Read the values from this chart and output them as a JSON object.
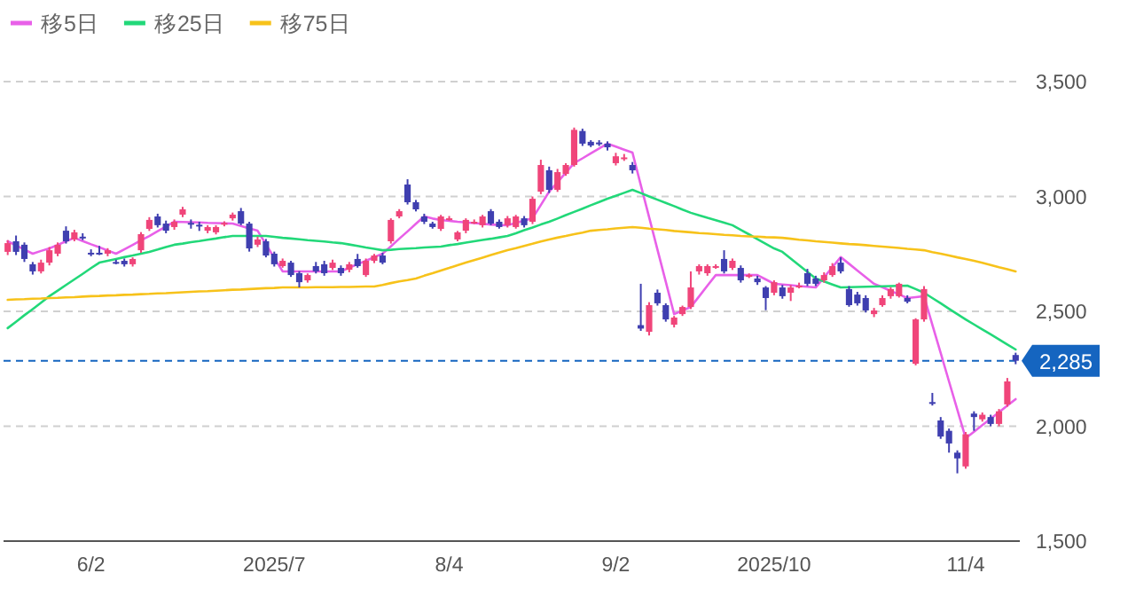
{
  "chart_data": {
    "type": "candlestick",
    "categories": [
      null,
      null,
      null,
      null,
      null,
      null,
      null,
      null,
      null,
      null,
      "6/2",
      null,
      null,
      null,
      null,
      null,
      null,
      null,
      null,
      null,
      null,
      null,
      null,
      null,
      null,
      null,
      null,
      null,
      null,
      null,
      null,
      null,
      "2025/7",
      null,
      null,
      null,
      null,
      null,
      null,
      null,
      null,
      null,
      null,
      null,
      null,
      null,
      null,
      null,
      null,
      null,
      null,
      null,
      null,
      "8/4",
      null,
      null,
      null,
      null,
      null,
      null,
      null,
      null,
      null,
      null,
      null,
      null,
      null,
      null,
      null,
      null,
      null,
      null,
      null,
      "9/2",
      null,
      null,
      null,
      null,
      null,
      null,
      null,
      null,
      null,
      null,
      null,
      null,
      null,
      null,
      null,
      null,
      null,
      null,
      "2025/10",
      null,
      null,
      null,
      null,
      null,
      null,
      null,
      null,
      null,
      null,
      null,
      null,
      null,
      null,
      null,
      null,
      null,
      null,
      null,
      null,
      null,
      null,
      "11/4",
      null,
      null,
      null,
      null,
      null,
      null
    ],
    "ohlc": [
      [
        2759,
        2810,
        2745,
        2797
      ],
      [
        2805,
        2830,
        2745,
        2759
      ],
      [
        2790,
        2800,
        2715,
        2728
      ],
      [
        2705,
        2715,
        2660,
        2674
      ],
      [
        2674,
        2725,
        2665,
        2712
      ],
      [
        2712,
        2780,
        2700,
        2766
      ],
      [
        2751,
        2800,
        2740,
        2790
      ],
      [
        2851,
        2870,
        2795,
        2805
      ],
      [
        2813,
        2855,
        2805,
        2844
      ],
      [
        2825,
        2840,
        2810,
        2818
      ],
      [
        2755,
        2770,
        2740,
        2750
      ],
      [
        2755,
        2785,
        2745,
        2748
      ],
      [
        2751,
        2775,
        2740,
        2766
      ],
      [
        2715,
        2725,
        2705,
        2710
      ],
      [
        2720,
        2730,
        2695,
        2705
      ],
      [
        2705,
        2735,
        2695,
        2728
      ],
      [
        2766,
        2845,
        2755,
        2836
      ],
      [
        2859,
        2910,
        2850,
        2898
      ],
      [
        2913,
        2925,
        2865,
        2875
      ],
      [
        2882,
        2895,
        2840,
        2851
      ],
      [
        2867,
        2900,
        2855,
        2890
      ],
      [
        2921,
        2955,
        2910,
        2944
      ],
      [
        2885,
        2900,
        2860,
        2880
      ],
      [
        2877,
        2890,
        2850,
        2874
      ],
      [
        2851,
        2875,
        2840,
        2867
      ],
      [
        2844,
        2875,
        2835,
        2867
      ],
      [
        2878,
        2892,
        2870,
        2885
      ],
      [
        2905,
        2930,
        2895,
        2921
      ],
      [
        2936,
        2950,
        2875,
        2882
      ],
      [
        2882,
        2890,
        2760,
        2774
      ],
      [
        2790,
        2825,
        2780,
        2813
      ],
      [
        2805,
        2815,
        2735,
        2743
      ],
      [
        2751,
        2760,
        2695,
        2705
      ],
      [
        2697,
        2730,
        2690,
        2720
      ],
      [
        2712,
        2720,
        2650,
        2658
      ],
      [
        2666,
        2675,
        2604,
        2627
      ],
      [
        2635,
        2665,
        2625,
        2658
      ],
      [
        2697,
        2715,
        2665,
        2674
      ],
      [
        2705,
        2720,
        2655,
        2666
      ],
      [
        2689,
        2725,
        2680,
        2712
      ],
      [
        2689,
        2700,
        2655,
        2666
      ],
      [
        2681,
        2715,
        2670,
        2705
      ],
      [
        2728,
        2750,
        2690,
        2697
      ],
      [
        2658,
        2730,
        2650,
        2720
      ],
      [
        2720,
        2750,
        2710,
        2743
      ],
      [
        2743,
        2755,
        2705,
        2712
      ],
      [
        2805,
        2905,
        2795,
        2898
      ],
      [
        2913,
        2945,
        2905,
        2936
      ],
      [
        3052,
        3075,
        2965,
        2975
      ],
      [
        2975,
        2985,
        2935,
        2944
      ],
      [
        2913,
        2925,
        2880,
        2890
      ],
      [
        2882,
        2890,
        2860,
        2867
      ],
      [
        2859,
        2920,
        2850,
        2913
      ],
      [
        2900,
        2915,
        2895,
        2905
      ],
      [
        2813,
        2850,
        2805,
        2844
      ],
      [
        2851,
        2905,
        2840,
        2898
      ],
      [
        2885,
        2900,
        2880,
        2890
      ],
      [
        2875,
        2920,
        2865,
        2913
      ],
      [
        2936,
        2945,
        2875,
        2882
      ],
      [
        2890,
        2900,
        2860,
        2867
      ],
      [
        2875,
        2915,
        2865,
        2905
      ],
      [
        2867,
        2920,
        2860,
        2913
      ],
      [
        2905,
        2915,
        2865,
        2875
      ],
      [
        2890,
        3000,
        2880,
        2990
      ],
      [
        3021,
        3160,
        3010,
        3137
      ],
      [
        3114,
        3130,
        3015,
        3029
      ],
      [
        3029,
        3120,
        3020,
        3106
      ],
      [
        3098,
        3145,
        3090,
        3137
      ],
      [
        3137,
        3300,
        3130,
        3290
      ],
      [
        3285,
        3295,
        3220,
        3230
      ],
      [
        3238,
        3245,
        3215,
        3222
      ],
      [
        3235,
        3245,
        3220,
        3228
      ],
      [
        3230,
        3240,
        3200,
        3214
      ],
      [
        3145,
        3190,
        3135,
        3175
      ],
      [
        3165,
        3185,
        3155,
        3170
      ],
      [
        3137,
        3150,
        3100,
        3114
      ],
      [
        2440,
        2620,
        2415,
        2425
      ],
      [
        2411,
        2540,
        2395,
        2527
      ],
      [
        2581,
        2595,
        2525,
        2535
      ],
      [
        2527,
        2535,
        2455,
        2465
      ],
      [
        2442,
        2480,
        2430,
        2473
      ],
      [
        2488,
        2525,
        2480,
        2519
      ],
      [
        2519,
        2674,
        2510,
        2604
      ],
      [
        2674,
        2705,
        2660,
        2697
      ],
      [
        2666,
        2705,
        2655,
        2697
      ],
      [
        2690,
        2705,
        2685,
        2697
      ],
      [
        2728,
        2766,
        2665,
        2674
      ],
      [
        2689,
        2730,
        2680,
        2720
      ],
      [
        2689,
        2700,
        2625,
        2635
      ],
      [
        2650,
        2665,
        2645,
        2658
      ],
      [
        2643,
        2655,
        2615,
        2627
      ],
      [
        2604,
        2610,
        2505,
        2558
      ],
      [
        2581,
        2635,
        2570,
        2627
      ],
      [
        2604,
        2615,
        2555,
        2566
      ],
      [
        2581,
        2615,
        2545,
        2604
      ],
      [
        2604,
        2625,
        2600,
        2612
      ],
      [
        2666,
        2685,
        2610,
        2620
      ],
      [
        2643,
        2655,
        2610,
        2620
      ],
      [
        2635,
        2670,
        2625,
        2658
      ],
      [
        2658,
        2710,
        2650,
        2697
      ],
      [
        2712,
        2735,
        2665,
        2674
      ],
      [
        2597,
        2610,
        2520,
        2527
      ],
      [
        2573,
        2585,
        2525,
        2535
      ],
      [
        2558,
        2570,
        2495,
        2504
      ],
      [
        2488,
        2515,
        2475,
        2504
      ],
      [
        2527,
        2570,
        2520,
        2558
      ],
      [
        2566,
        2605,
        2555,
        2597
      ],
      [
        2566,
        2625,
        2560,
        2620
      ],
      [
        2558,
        2570,
        2535,
        2542
      ],
      [
        2272,
        2470,
        2265,
        2465
      ],
      [
        2465,
        2610,
        2455,
        2597
      ],
      [
        2105,
        2145,
        2090,
        2098
      ],
      [
        2025,
        2040,
        1945,
        1955
      ],
      [
        1980,
        1990,
        1885,
        1925
      ],
      [
        1885,
        1895,
        1795,
        1860
      ],
      [
        1825,
        1975,
        1815,
        1965
      ],
      [
        2055,
        2065,
        1980,
        2040
      ],
      [
        2030,
        2060,
        2020,
        2050
      ],
      [
        2040,
        2050,
        2000,
        2010
      ],
      [
        2010,
        2075,
        2000,
        2065
      ],
      [
        2095,
        2210,
        2085,
        2195
      ],
      [
        2310,
        2320,
        2270,
        2285
      ]
    ],
    "colors": [
      "#f0457a",
      "#3f3fb0",
      "#3f3fb0",
      "#3f3fb0",
      "#f0457a",
      "#f0457a",
      "#f0457a",
      "#3f3fb0",
      "#f0457a",
      "#3f3fb0",
      "#3f3fb0",
      "#3f3fb0",
      "#f0457a",
      "#3f3fb0",
      "#3f3fb0",
      "#f0457a",
      "#f0457a",
      "#f0457a",
      "#3f3fb0",
      "#3f3fb0",
      "#f0457a",
      "#f0457a",
      "#3f3fb0",
      "#3f3fb0",
      "#f0457a",
      "#f0457a",
      "#f0457a",
      "#f0457a",
      "#3f3fb0",
      "#3f3fb0",
      "#f0457a",
      "#3f3fb0",
      "#3f3fb0",
      "#f0457a",
      "#3f3fb0",
      "#3f3fb0",
      "#f0457a",
      "#3f3fb0",
      "#3f3fb0",
      "#f0457a",
      "#3f3fb0",
      "#f0457a",
      "#3f3fb0",
      "#f0457a",
      "#f0457a",
      "#3f3fb0",
      "#f0457a",
      "#f0457a",
      "#3f3fb0",
      "#3f3fb0",
      "#3f3fb0",
      "#3f3fb0",
      "#f0457a",
      "#f0457a",
      "#f0457a",
      "#f0457a",
      "#f0457a",
      "#f0457a",
      "#3f3fb0",
      "#3f3fb0",
      "#f0457a",
      "#f0457a",
      "#3f3fb0",
      "#f0457a",
      "#f0457a",
      "#3f3fb0",
      "#f0457a",
      "#f0457a",
      "#f0457a",
      "#3f3fb0",
      "#3f3fb0",
      "#3f3fb0",
      "#3f3fb0",
      "#f0457a",
      "#f0457a",
      "#3f3fb0",
      "#3f3fb0",
      "#f0457a",
      "#3f3fb0",
      "#3f3fb0",
      "#f0457a",
      "#f0457a",
      "#f0457a",
      "#f0457a",
      "#f0457a",
      "#f0457a",
      "#3f3fb0",
      "#f0457a",
      "#3f3fb0",
      "#f0457a",
      "#3f3fb0",
      "#3f3fb0",
      "#f0457a",
      "#3f3fb0",
      "#f0457a",
      "#f0457a",
      "#3f3fb0",
      "#3f3fb0",
      "#f0457a",
      "#f0457a",
      "#3f3fb0",
      "#3f3fb0",
      "#3f3fb0",
      "#3f3fb0",
      "#f0457a",
      "#f0457a",
      "#f0457a",
      "#f0457a",
      "#3f3fb0",
      "#f0457a",
      "#f0457a",
      "#3f3fb0",
      "#3f3fb0",
      "#3f3fb0",
      "#3f3fb0",
      "#f0457a",
      "#3f3fb0",
      "#f0457a",
      "#3f3fb0",
      "#f0457a",
      "#f0457a",
      "#3f3fb0"
    ],
    "series": [
      {
        "name": "移5日",
        "type": "line",
        "color": "#e860e8",
        "values": [
          2805,
          2787,
          2769,
          2751,
          2763,
          2774,
          2789,
          2805,
          2820,
          2806,
          2792,
          2779,
          2765,
          2751,
          2770,
          2789,
          2809,
          2828,
          2849,
          2869,
          2890,
          2889,
          2888,
          2887,
          2885,
          2884,
          2883,
          2882,
          2872,
          2861,
          2851,
          2792,
          2733,
          2674,
          2674,
          2674,
          2674,
          2674,
          2674,
          2674,
          2674,
          2690,
          2705,
          2720,
          2736,
          2751,
          2783,
          2816,
          2848,
          2881,
          2913,
          2904,
          2898,
          2894,
          2890,
          2887,
          2884,
          2881,
          2878,
          2876,
          2875,
          2885,
          2895,
          2905,
          2963,
          3021,
          3062,
          3104,
          3145,
          3166,
          3188,
          3209,
          3230,
          3217,
          3204,
          3191,
          3050,
          2910,
          2769,
          2629,
          2488,
          2504,
          2519,
          2565,
          2612,
          2658,
          2658,
          2658,
          2658,
          2658,
          2658,
          2639,
          2620,
          2617,
          2614,
          2610,
          2607,
          2604,
          2648,
          2692,
          2736,
          2707,
          2678,
          2649,
          2620,
          2605,
          2589,
          2574,
          2558,
          2562,
          2566,
          2442,
          2319,
          2195,
          2072,
          1948,
          1976,
          2005,
          2033,
          2061,
          2090,
          2118
        ]
      },
      {
        "name": "移25日",
        "type": "line",
        "color": "#22d879",
        "values": [
          2427,
          2455,
          2483,
          2510,
          2538,
          2566,
          2590,
          2615,
          2639,
          2663,
          2688,
          2712,
          2720,
          2728,
          2736,
          2743,
          2751,
          2759,
          2769,
          2780,
          2790,
          2795,
          2801,
          2806,
          2812,
          2817,
          2823,
          2828,
          2828,
          2828,
          2828,
          2828,
          2824,
          2820,
          2817,
          2814,
          2810,
          2807,
          2804,
          2800,
          2797,
          2791,
          2785,
          2778,
          2772,
          2766,
          2768,
          2771,
          2773,
          2775,
          2778,
          2780,
          2782,
          2788,
          2793,
          2799,
          2805,
          2811,
          2816,
          2822,
          2828,
          2840,
          2853,
          2865,
          2878,
          2890,
          2904,
          2919,
          2933,
          2947,
          2962,
          2976,
          2990,
          3003,
          3016,
          3029,
          3015,
          3000,
          2986,
          2972,
          2958,
          2943,
          2929,
          2918,
          2907,
          2897,
          2886,
          2875,
          2855,
          2835,
          2814,
          2794,
          2774,
          2759,
          2730,
          2701,
          2672,
          2643,
          2630,
          2617,
          2604,
          2605,
          2606,
          2607,
          2608,
          2609,
          2610,
          2611,
          2612,
          2597,
          2581,
          2558,
          2535,
          2511,
          2488,
          2465,
          2443,
          2421,
          2400,
          2378,
          2356,
          2334
        ]
      },
      {
        "name": "移75日",
        "type": "line",
        "color": "#f7c21a",
        "values": [
          2550,
          2552,
          2553,
          2555,
          2556,
          2558,
          2559,
          2561,
          2562,
          2564,
          2566,
          2567,
          2569,
          2570,
          2572,
          2573,
          2575,
          2576,
          2578,
          2579,
          2581,
          2583,
          2585,
          2587,
          2588,
          2590,
          2592,
          2594,
          2595,
          2597,
          2599,
          2601,
          2602,
          2604,
          2604,
          2604,
          2604,
          2605,
          2605,
          2605,
          2606,
          2606,
          2607,
          2608,
          2608,
          2615,
          2623,
          2630,
          2636,
          2643,
          2655,
          2666,
          2678,
          2689,
          2701,
          2712,
          2723,
          2734,
          2745,
          2756,
          2766,
          2775,
          2785,
          2794,
          2804,
          2813,
          2821,
          2828,
          2836,
          2843,
          2851,
          2854,
          2857,
          2861,
          2864,
          2867,
          2864,
          2860,
          2857,
          2854,
          2850,
          2847,
          2844,
          2841,
          2839,
          2836,
          2833,
          2831,
          2828,
          2826,
          2825,
          2823,
          2822,
          2820,
          2816,
          2812,
          2809,
          2805,
          2802,
          2799,
          2796,
          2793,
          2791,
          2788,
          2785,
          2782,
          2779,
          2776,
          2772,
          2769,
          2766,
          2758,
          2751,
          2743,
          2735,
          2728,
          2720,
          2711,
          2702,
          2692,
          2683,
          2674
        ]
      }
    ],
    "ref_lines": [
      {
        "axis": "y",
        "value": 2285,
        "label": "2,285",
        "color": "#1565c0",
        "line_style": "dashed"
      }
    ],
    "ylim": [
      1500,
      3500
    ],
    "yticks": [
      {
        "value": 1500,
        "label": "1,500"
      },
      {
        "value": 2000,
        "label": "2,000"
      },
      {
        "value": 2500,
        "label": "2,500"
      },
      {
        "value": 3000,
        "label": "3,000"
      },
      {
        "value": 3500,
        "label": "3,500"
      }
    ],
    "grid": "y",
    "legend": "top left"
  }
}
